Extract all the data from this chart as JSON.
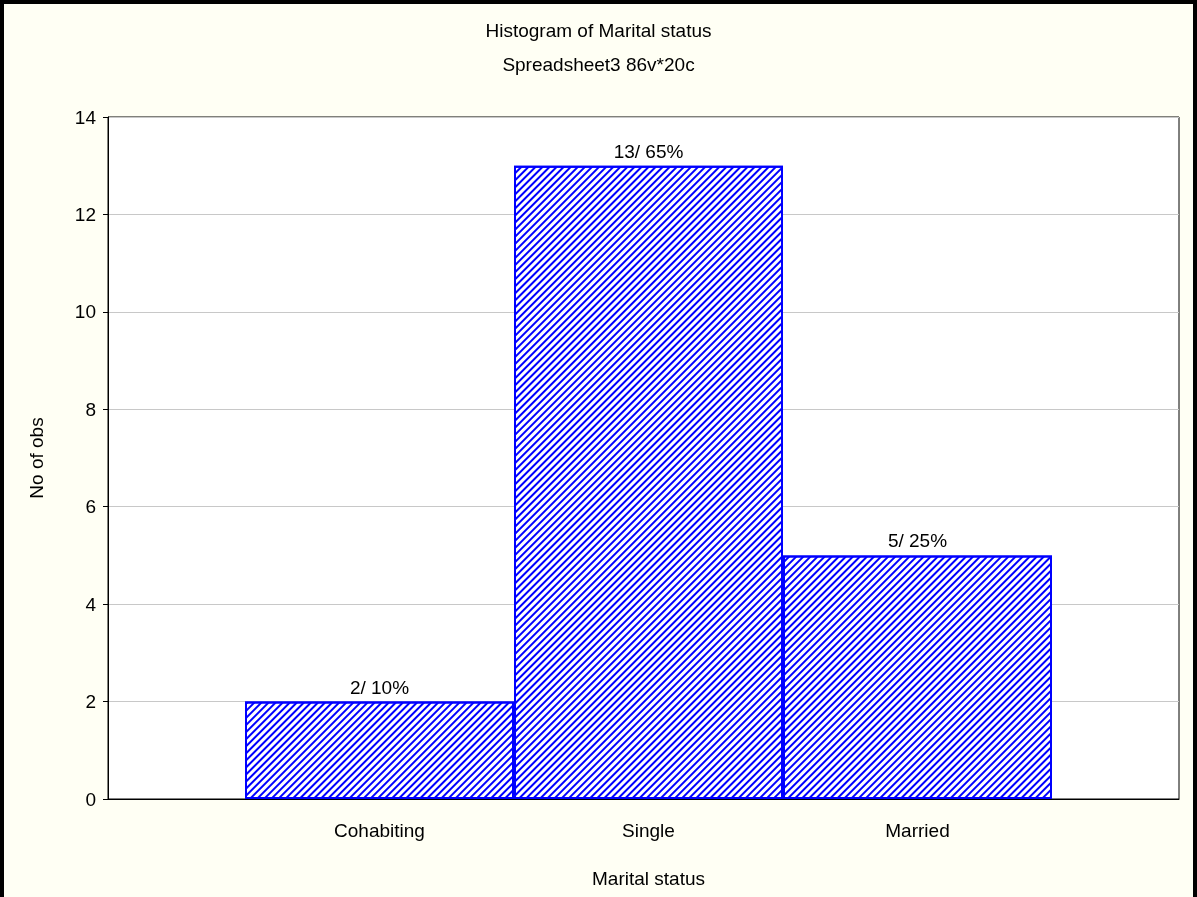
{
  "chart_data": {
    "type": "bar",
    "title": "Histogram of Marital status",
    "subtitle": "Spreadsheet3 86v*20c",
    "xlabel": "Marital status",
    "ylabel": "No of obs",
    "categories": [
      "Cohabiting",
      "Single",
      "Married"
    ],
    "values": [
      2,
      13,
      5
    ],
    "value_labels": [
      "2/ 10%",
      "13/ 65%",
      "5/ 25%"
    ],
    "color": "#0000ff",
    "ylim": [
      0,
      14
    ],
    "yticks": [
      0,
      2,
      4,
      6,
      8,
      10,
      12,
      14
    ],
    "grid": "y"
  }
}
